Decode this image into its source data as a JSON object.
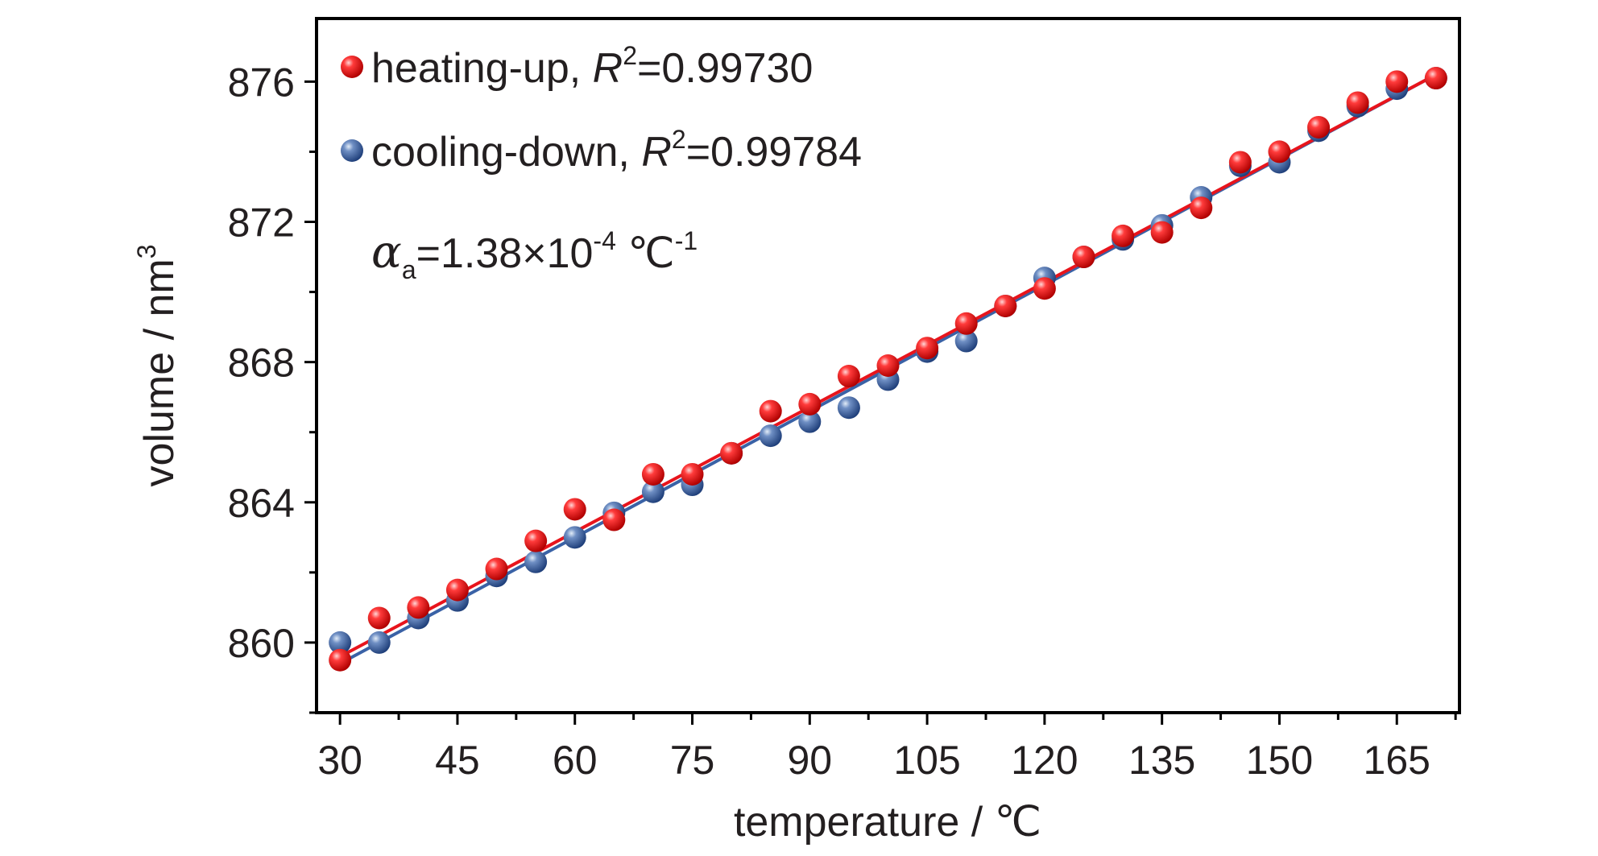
{
  "chart_data": {
    "type": "scatter",
    "xlabel": "temperature / ℃",
    "ylabel_main": "volume / nm",
    "ylabel_sup": "3",
    "xlim": [
      27,
      173
    ],
    "ylim": [
      858,
      877.8
    ],
    "xticks": [
      30,
      45,
      60,
      75,
      90,
      105,
      120,
      135,
      150,
      165
    ],
    "yticks": [
      860,
      864,
      868,
      872,
      876
    ],
    "grid": false,
    "legend_position": "top-left",
    "annotation": {
      "symbol": "α",
      "subscript": "a",
      "value": "=1.38×10",
      "exponent": "-4",
      "unit": " ℃",
      "unit_exponent": "-1"
    },
    "series": [
      {
        "name": "heating-up",
        "r2_label": "R",
        "r2_sup": "2",
        "r2_value": "=0.99730",
        "color": "#e8141c",
        "fit": {
          "x": [
            30,
            170
          ],
          "y": [
            859.6,
            876.2
          ]
        },
        "x": [
          30,
          35,
          40,
          45,
          50,
          55,
          60,
          65,
          70,
          75,
          80,
          85,
          90,
          95,
          100,
          105,
          110,
          115,
          120,
          125,
          130,
          135,
          140,
          145,
          150,
          155,
          160,
          165,
          170
        ],
        "y": [
          859.5,
          860.7,
          861.0,
          861.5,
          862.1,
          862.9,
          863.8,
          863.5,
          864.8,
          864.8,
          865.4,
          866.6,
          866.8,
          867.6,
          867.9,
          868.4,
          869.1,
          869.6,
          870.1,
          871.0,
          871.6,
          871.7,
          872.4,
          873.7,
          874.0,
          874.7,
          875.4,
          876.0,
          876.1
        ]
      },
      {
        "name": "cooling-down",
        "r2_label": "R",
        "r2_sup": "2",
        "r2_value": "=0.99784",
        "color": "#3a62a6",
        "fit": {
          "x": [
            30,
            170
          ],
          "y": [
            859.4,
            876.2
          ]
        },
        "x": [
          30,
          35,
          40,
          45,
          50,
          55,
          60,
          65,
          70,
          75,
          80,
          85,
          90,
          95,
          100,
          105,
          110,
          115,
          120,
          125,
          130,
          135,
          140,
          145,
          150,
          155,
          160,
          165,
          170
        ],
        "y": [
          860.0,
          860.0,
          860.7,
          861.2,
          861.9,
          862.3,
          863.0,
          863.7,
          864.3,
          864.5,
          865.4,
          865.9,
          866.3,
          866.7,
          867.5,
          868.3,
          868.6,
          869.6,
          870.4,
          871.0,
          871.5,
          871.9,
          872.7,
          873.6,
          873.7,
          874.6,
          875.3,
          875.8,
          876.1
        ]
      }
    ]
  }
}
